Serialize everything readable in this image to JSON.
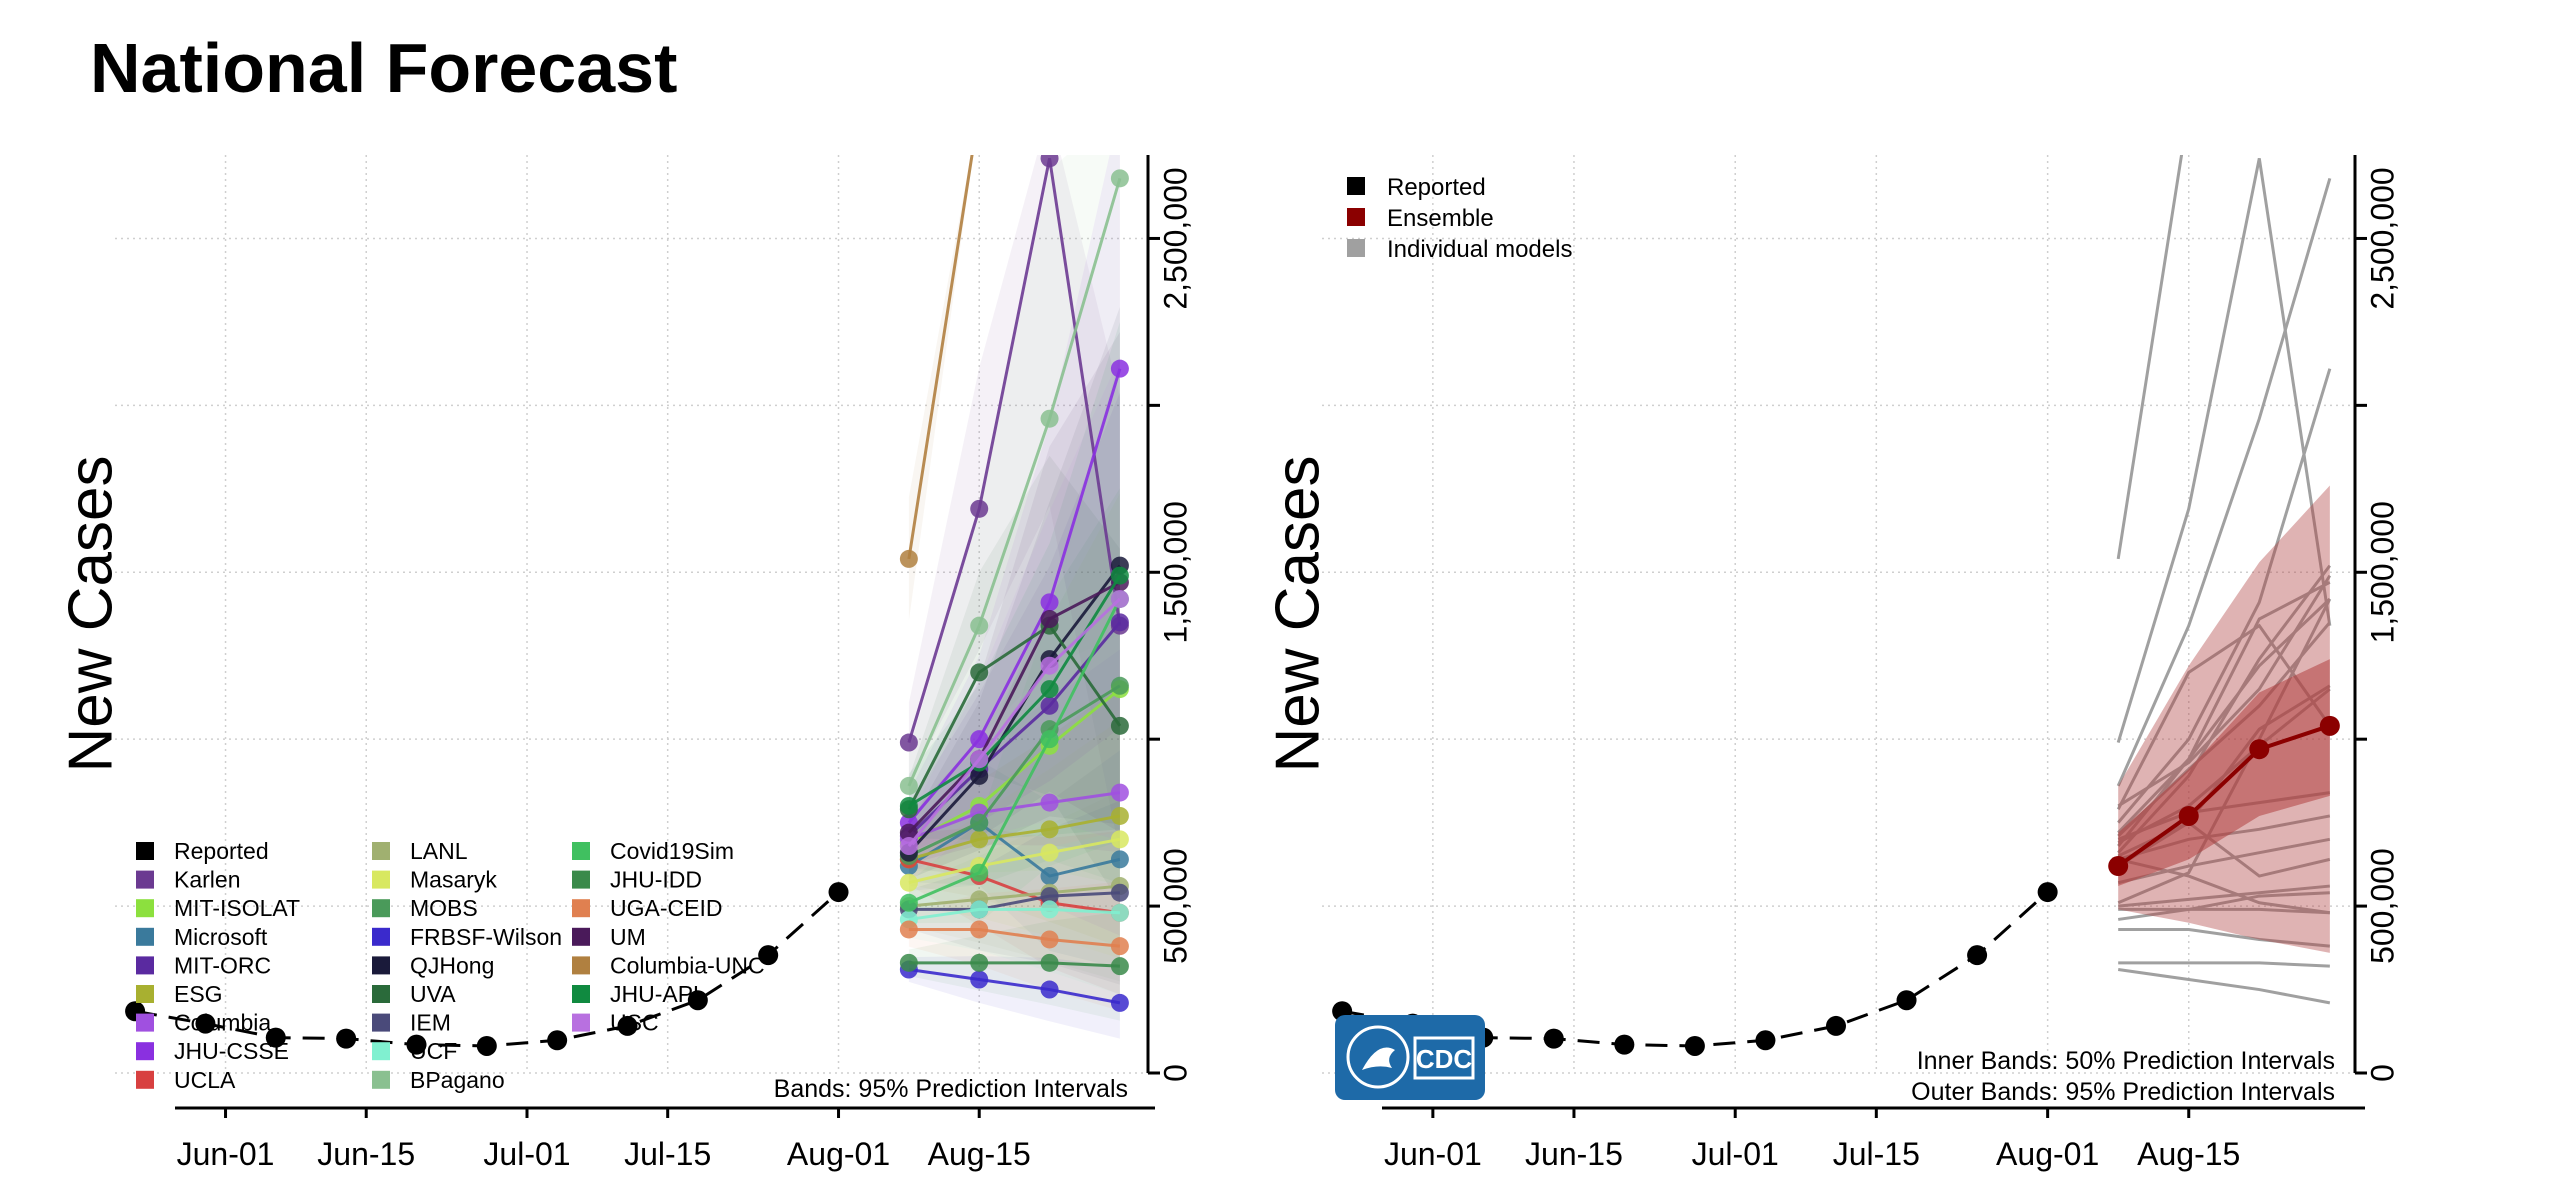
{
  "title": "National Forecast",
  "chart_data": [
    {
      "type": "line",
      "panel": "individual-models",
      "ylabel": "New Cases",
      "xlabel": "",
      "x_ticks": [
        "Jun-01",
        "Jun-15",
        "Jul-01",
        "Jul-15",
        "Aug-01",
        "Aug-15"
      ],
      "y_ticks": [
        "0",
        "500,000",
        "1,500,000",
        "2,500,000"
      ],
      "y_axis_position": "right",
      "grid": true,
      "ylim": [
        0,
        2750000
      ],
      "x_range": [
        "2020-05-21",
        "2020-08-31"
      ],
      "legend_position": "bottom-left",
      "footnote": "Bands: 95% Prediction Intervals",
      "reported": {
        "name": "Reported",
        "color": "#000000",
        "x": [
          "2020-05-23",
          "2020-05-30",
          "2020-06-06",
          "2020-06-13",
          "2020-06-20",
          "2020-06-27",
          "2020-07-04",
          "2020-07-11",
          "2020-07-18",
          "2020-07-25",
          "2020-08-01"
        ],
        "y": [
          185000,
          148000,
          106000,
          103000,
          85000,
          81000,
          98000,
          141000,
          218000,
          353000,
          542000
        ]
      },
      "forecast_dates": [
        "2020-08-08",
        "2020-08-15",
        "2020-08-22",
        "2020-08-29"
      ],
      "series": [
        {
          "name": "Karlen",
          "color": "#6B3A91",
          "values": [
            990000,
            1690000,
            2740000,
            1340000
          ]
        },
        {
          "name": "MIT-ISOLAT",
          "color": "#8CE03E",
          "values": [
            690000,
            800000,
            980000,
            1150000
          ]
        },
        {
          "name": "Microsoft",
          "color": "#3A7A9C",
          "values": [
            620000,
            750000,
            590000,
            640000
          ]
        },
        {
          "name": "MIT-ORC",
          "color": "#5A2AA0",
          "values": [
            710000,
            910000,
            1100000,
            1350000
          ]
        },
        {
          "name": "ESG",
          "color": "#A8B030",
          "values": [
            640000,
            700000,
            730000,
            770000
          ]
        },
        {
          "name": "Columbia",
          "color": "#A050E0",
          "values": [
            700000,
            780000,
            810000,
            840000
          ]
        },
        {
          "name": "JHU-CSSE",
          "color": "#8A30E0",
          "values": [
            750000,
            1000000,
            1410000,
            2110000
          ]
        },
        {
          "name": "UCLA",
          "color": "#D84040",
          "values": [
            640000,
            590000,
            510000,
            480000
          ]
        },
        {
          "name": "LANL",
          "color": "#A0B070",
          "values": [
            500000,
            520000,
            540000,
            560000
          ]
        },
        {
          "name": "Masaryk",
          "color": "#D8E860",
          "values": [
            570000,
            620000,
            660000,
            700000
          ]
        },
        {
          "name": "MOBS",
          "color": "#4A9A5A",
          "values": [
            650000,
            750000,
            1030000,
            1160000
          ]
        },
        {
          "name": "FRBSF-Wilson",
          "color": "#3A2ACC",
          "values": [
            310000,
            280000,
            250000,
            210000
          ]
        },
        {
          "name": "QJHong",
          "color": "#1A1A3A",
          "values": [
            660000,
            890000,
            1240000,
            1520000
          ]
        },
        {
          "name": "UVA",
          "color": "#2A6A3A",
          "values": [
            790000,
            1200000,
            1340000,
            1040000
          ]
        },
        {
          "name": "IEM",
          "color": "#4A4A7A",
          "values": [
            490000,
            490000,
            530000,
            540000
          ]
        },
        {
          "name": "UCF",
          "color": "#80F0D0",
          "values": [
            460000,
            490000,
            490000,
            480000
          ]
        },
        {
          "name": "BPagano",
          "color": "#8AC090",
          "values": [
            860000,
            1340000,
            1960000,
            2680000
          ]
        },
        {
          "name": "Covid19Sim",
          "color": "#40C060",
          "values": [
            510000,
            600000,
            1000000,
            1420000
          ]
        },
        {
          "name": "JHU-IDD",
          "color": "#3A8A4A",
          "values": [
            330000,
            330000,
            330000,
            320000
          ]
        },
        {
          "name": "UGA-CEID",
          "color": "#E08050",
          "values": [
            430000,
            430000,
            400000,
            380000
          ]
        },
        {
          "name": "UM",
          "color": "#4A1A5A",
          "values": [
            720000,
            940000,
            1360000,
            1470000
          ]
        },
        {
          "name": "Columbia-UNC",
          "color": "#B08040",
          "values": [
            1540000,
            4200000
          ]
        },
        {
          "name": "JHU-APL",
          "color": "#108A40",
          "values": [
            800000,
            930000,
            1150000,
            1490000
          ]
        },
        {
          "name": "USC",
          "color": "#B870E0",
          "values": [
            680000,
            940000,
            1220000,
            1420000
          ]
        }
      ]
    },
    {
      "type": "line",
      "panel": "ensemble",
      "ylabel": "New Cases",
      "xlabel": "",
      "x_ticks": [
        "Jun-01",
        "Jun-15",
        "Jul-01",
        "Jul-15",
        "Aug-01",
        "Aug-15"
      ],
      "y_ticks": [
        "0",
        "500,000",
        "1,500,000",
        "2,500,000"
      ],
      "y_axis_position": "right",
      "grid": true,
      "ylim": [
        0,
        2750000
      ],
      "x_range": [
        "2020-05-21",
        "2020-08-31"
      ],
      "legend_position": "top-left",
      "legend": [
        {
          "label": "Reported",
          "color": "#000000"
        },
        {
          "label": "Ensemble",
          "color": "#8B0000"
        },
        {
          "label": "Individual models",
          "color": "#A0A0A0"
        }
      ],
      "footnotes": [
        "Inner Bands: 50% Prediction Intervals",
        "Outer Bands: 95% Prediction Intervals"
      ],
      "logo_text": "CDC",
      "reported": {
        "name": "Reported",
        "x": [
          "2020-05-23",
          "2020-05-30",
          "2020-06-06",
          "2020-06-13",
          "2020-06-20",
          "2020-06-27",
          "2020-07-04",
          "2020-07-11",
          "2020-07-18",
          "2020-07-25",
          "2020-08-01"
        ],
        "y": [
          185000,
          148000,
          106000,
          103000,
          85000,
          81000,
          98000,
          141000,
          218000,
          353000,
          542000
        ]
      },
      "forecast_dates": [
        "2020-08-08",
        "2020-08-15",
        "2020-08-22",
        "2020-08-29"
      ],
      "ensemble": {
        "name": "Ensemble",
        "color": "#8B0000",
        "values": [
          620000,
          770000,
          970000,
          1040000
        ],
        "inner_band": {
          "lower": [
            560000,
            640000,
            770000,
            830000
          ],
          "upper": [
            720000,
            910000,
            1140000,
            1240000
          ]
        },
        "outer_band": {
          "lower": [
            490000,
            450000,
            400000,
            360000
          ],
          "upper": [
            860000,
            1220000,
            1530000,
            1760000
          ]
        }
      },
      "band_color": "#B04040"
    }
  ]
}
